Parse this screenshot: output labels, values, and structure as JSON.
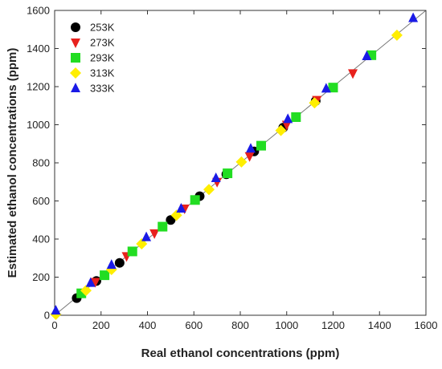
{
  "chart_data": {
    "type": "scatter",
    "xlabel": "Real ethanol concentrations (ppm)",
    "ylabel": "Estimated ethanol concentrations (ppm)",
    "xlim": [
      0,
      1600
    ],
    "ylim": [
      0,
      1600
    ],
    "xticks": [
      0,
      200,
      400,
      600,
      800,
      1000,
      1200,
      1400,
      1600
    ],
    "yticks": [
      0,
      200,
      400,
      600,
      800,
      1000,
      1200,
      1400,
      1600
    ],
    "grid": false,
    "legend_position": "top-left",
    "reference_line": {
      "from": [
        0,
        0
      ],
      "to": [
        1600,
        1600
      ],
      "color": "#777777"
    },
    "series": [
      {
        "name": "253K",
        "marker": "circle",
        "color": "#000000",
        "x": [
          95,
          180,
          280,
          500,
          625,
          740,
          860,
          985,
          1125
        ],
        "y": [
          90,
          180,
          275,
          500,
          625,
          740,
          860,
          985,
          1125
        ]
      },
      {
        "name": "273K",
        "marker": "triangle-down",
        "color": "#e8211d",
        "x": [
          175,
          310,
          430,
          560,
          700,
          840,
          1000,
          1130,
          1285
        ],
        "y": [
          175,
          310,
          430,
          560,
          700,
          835,
          1000,
          1130,
          1270
        ]
      },
      {
        "name": "293K",
        "marker": "square",
        "color": "#22dd22",
        "x": [
          115,
          215,
          335,
          465,
          605,
          745,
          890,
          1040,
          1200,
          1365
        ],
        "y": [
          115,
          210,
          335,
          465,
          605,
          745,
          890,
          1040,
          1195,
          1365
        ]
      },
      {
        "name": "313K",
        "marker": "diamond",
        "color": "#ffee00",
        "x": [
          5,
          135,
          245,
          375,
          525,
          665,
          805,
          975,
          1120,
          1475
        ],
        "y": [
          5,
          130,
          240,
          375,
          525,
          660,
          805,
          970,
          1115,
          1470
        ]
      },
      {
        "name": "333K",
        "marker": "triangle-up",
        "color": "#1a1ae6",
        "x": [
          5,
          155,
          245,
          395,
          545,
          695,
          845,
          1005,
          1170,
          1345,
          1545
        ],
        "y": [
          25,
          170,
          265,
          410,
          560,
          720,
          875,
          1030,
          1190,
          1360,
          1560
        ]
      }
    ]
  }
}
